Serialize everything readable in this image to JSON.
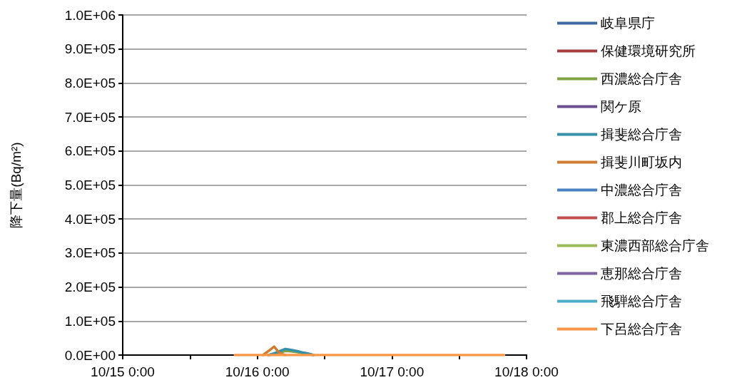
{
  "chart_data": {
    "type": "line",
    "ylabel": "降下量(Bq/m²)",
    "x": [
      "--10-15T20:00",
      "--10-16T00:00",
      "--10-16T01:00",
      "--10-16T02:00",
      "--10-16T03:00",
      "--10-16T04:00",
      "--10-16T05:00",
      "--10-16T06:00",
      "--10-16T07:00",
      "--10-16T08:00",
      "--10-16T09:00",
      "--10-16T10:00",
      "--10-16T12:00",
      "--10-17T00:00",
      "--10-17T12:00",
      "--10-17T20:00"
    ],
    "series": [
      {
        "name": "岐阜県庁",
        "color": "#3e6aa0",
        "values": [
          null,
          null,
          null,
          null,
          null,
          null,
          null,
          null,
          null,
          null,
          null,
          null,
          null,
          null,
          null,
          null
        ]
      },
      {
        "name": "保健環境研究所",
        "color": "#a23f3c",
        "values": [
          null,
          null,
          null,
          null,
          null,
          null,
          null,
          null,
          null,
          null,
          null,
          null,
          null,
          null,
          null,
          null
        ]
      },
      {
        "name": "西濃総合庁舎",
        "color": "#82a046",
        "values": [
          null,
          null,
          null,
          0,
          3000,
          8000,
          12000,
          11000,
          9000,
          6000,
          3000,
          0,
          null,
          null,
          null,
          null
        ]
      },
      {
        "name": "関ケ原",
        "color": "#6b4f8e",
        "values": [
          null,
          null,
          null,
          null,
          null,
          null,
          null,
          null,
          null,
          null,
          null,
          null,
          null,
          null,
          null,
          null
        ]
      },
      {
        "name": "揖斐総合庁舎",
        "color": "#3690a6",
        "values": [
          null,
          null,
          null,
          0,
          5000,
          12000,
          18000,
          15000,
          12000,
          8000,
          5000,
          0,
          null,
          null,
          null,
          null
        ]
      },
      {
        "name": "揖斐川町坂内",
        "color": "#d07d34",
        "values": [
          null,
          null,
          0,
          12000,
          25000,
          5000,
          0,
          null,
          null,
          null,
          null,
          null,
          null,
          null,
          null,
          null
        ]
      },
      {
        "name": "中濃総合庁舎",
        "color": "#4a7fc1",
        "values": [
          null,
          null,
          null,
          null,
          null,
          null,
          null,
          null,
          null,
          null,
          null,
          null,
          null,
          null,
          null,
          null
        ]
      },
      {
        "name": "郡上総合庁舎",
        "color": "#c0504d",
        "values": [
          null,
          null,
          null,
          null,
          null,
          null,
          null,
          null,
          null,
          null,
          null,
          null,
          null,
          null,
          null,
          null
        ]
      },
      {
        "name": "東濃西部総合庁舎",
        "color": "#9bbb59",
        "values": [
          null,
          null,
          null,
          null,
          null,
          null,
          null,
          null,
          null,
          null,
          null,
          null,
          null,
          null,
          null,
          null
        ]
      },
      {
        "name": "恵那総合庁舎",
        "color": "#8064a2",
        "values": [
          null,
          null,
          null,
          null,
          null,
          null,
          null,
          null,
          null,
          null,
          null,
          null,
          null,
          null,
          null,
          null
        ]
      },
      {
        "name": "飛騨総合庁舎",
        "color": "#4bacc6",
        "values": [
          null,
          null,
          null,
          null,
          null,
          null,
          null,
          null,
          null,
          null,
          null,
          null,
          null,
          null,
          null,
          null
        ]
      },
      {
        "name": "下呂総合庁舎",
        "color": "#f79646",
        "values": [
          0,
          0,
          0,
          0,
          0,
          0,
          0,
          0,
          0,
          0,
          0,
          0,
          0,
          0,
          0,
          0
        ]
      }
    ],
    "xlim": [
      "--10-15T00:00",
      "--10-18T00:00"
    ],
    "xticks": [
      {
        "value": "--10-15T00:00",
        "label": "10/15 0:00"
      },
      {
        "value": "--10-15T12:00",
        "label": null
      },
      {
        "value": "--10-16T00:00",
        "label": "10/16 0:00"
      },
      {
        "value": "--10-16T12:00",
        "label": null
      },
      {
        "value": "--10-17T00:00",
        "label": "10/17 0:00"
      },
      {
        "value": "--10-17T12:00",
        "label": null
      },
      {
        "value": "--10-18T00:00",
        "label": "10/18 0:00"
      }
    ],
    "ylim": [
      0,
      1000000
    ],
    "yticks": [
      {
        "value": 0,
        "label": "0.0E+00"
      },
      {
        "value": 100000,
        "label": "1.0E+05"
      },
      {
        "value": 200000,
        "label": "2.0E+05"
      },
      {
        "value": 300000,
        "label": "3.0E+05"
      },
      {
        "value": 400000,
        "label": "4.0E+05"
      },
      {
        "value": 500000,
        "label": "5.0E+05"
      },
      {
        "value": 600000,
        "label": "6.0E+05"
      },
      {
        "value": 700000,
        "label": "7.0E+05"
      },
      {
        "value": 800000,
        "label": "8.0E+05"
      },
      {
        "value": 900000,
        "label": "9.0E+05"
      },
      {
        "value": 1000000,
        "label": "1.0E+06"
      }
    ],
    "grid": "y",
    "legend": "right",
    "marker": "none",
    "line_style": "solid"
  }
}
